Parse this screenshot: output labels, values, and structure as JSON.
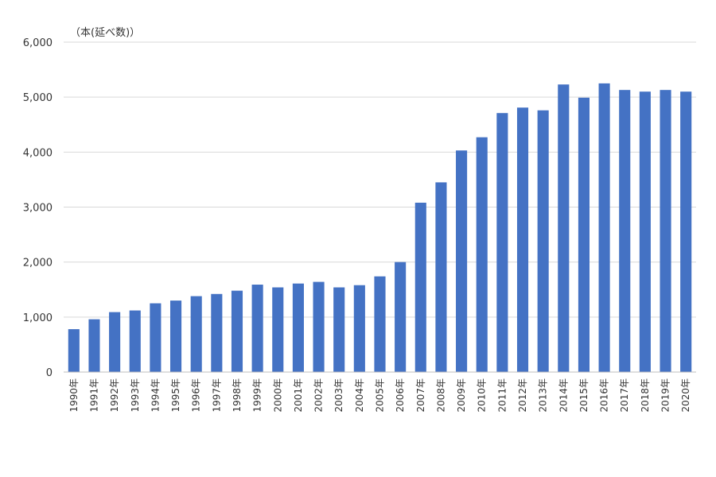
{
  "chart_data": {
    "type": "bar",
    "title": "",
    "unit_label": "（本(延べ数)）",
    "xlabel": "",
    "ylabel": "",
    "ylim": [
      0,
      6000
    ],
    "yticks": [
      0,
      1000,
      2000,
      3000,
      4000,
      5000,
      6000
    ],
    "ytick_labels": [
      "0",
      "1,000",
      "2,000",
      "3,000",
      "4,000",
      "5,000",
      "6,000"
    ],
    "grid": true,
    "legend": "none",
    "bar_color": "#4472c4",
    "grid_color": "#d9d9d9",
    "axis_color": "#bfbfbf",
    "categories": [
      "1990年",
      "1991年",
      "1992年",
      "1993年",
      "1994年",
      "1995年",
      "1996年",
      "1997年",
      "1998年",
      "1999年",
      "2000年",
      "2001年",
      "2002年",
      "2003年",
      "2004年",
      "2005年",
      "2006年",
      "2007年",
      "2008年",
      "2009年",
      "2010年",
      "2011年",
      "2012年",
      "2013年",
      "2014年",
      "2015年",
      "2016年",
      "2017年",
      "2018年",
      "2019年",
      "2020年"
    ],
    "values": [
      780,
      960,
      1090,
      1120,
      1250,
      1300,
      1380,
      1420,
      1480,
      1590,
      1540,
      1610,
      1640,
      1540,
      1580,
      1740,
      2000,
      3080,
      3450,
      4030,
      4270,
      4710,
      4810,
      4760,
      5230,
      4990,
      5250,
      5130,
      5100,
      5130,
      5100
    ]
  }
}
